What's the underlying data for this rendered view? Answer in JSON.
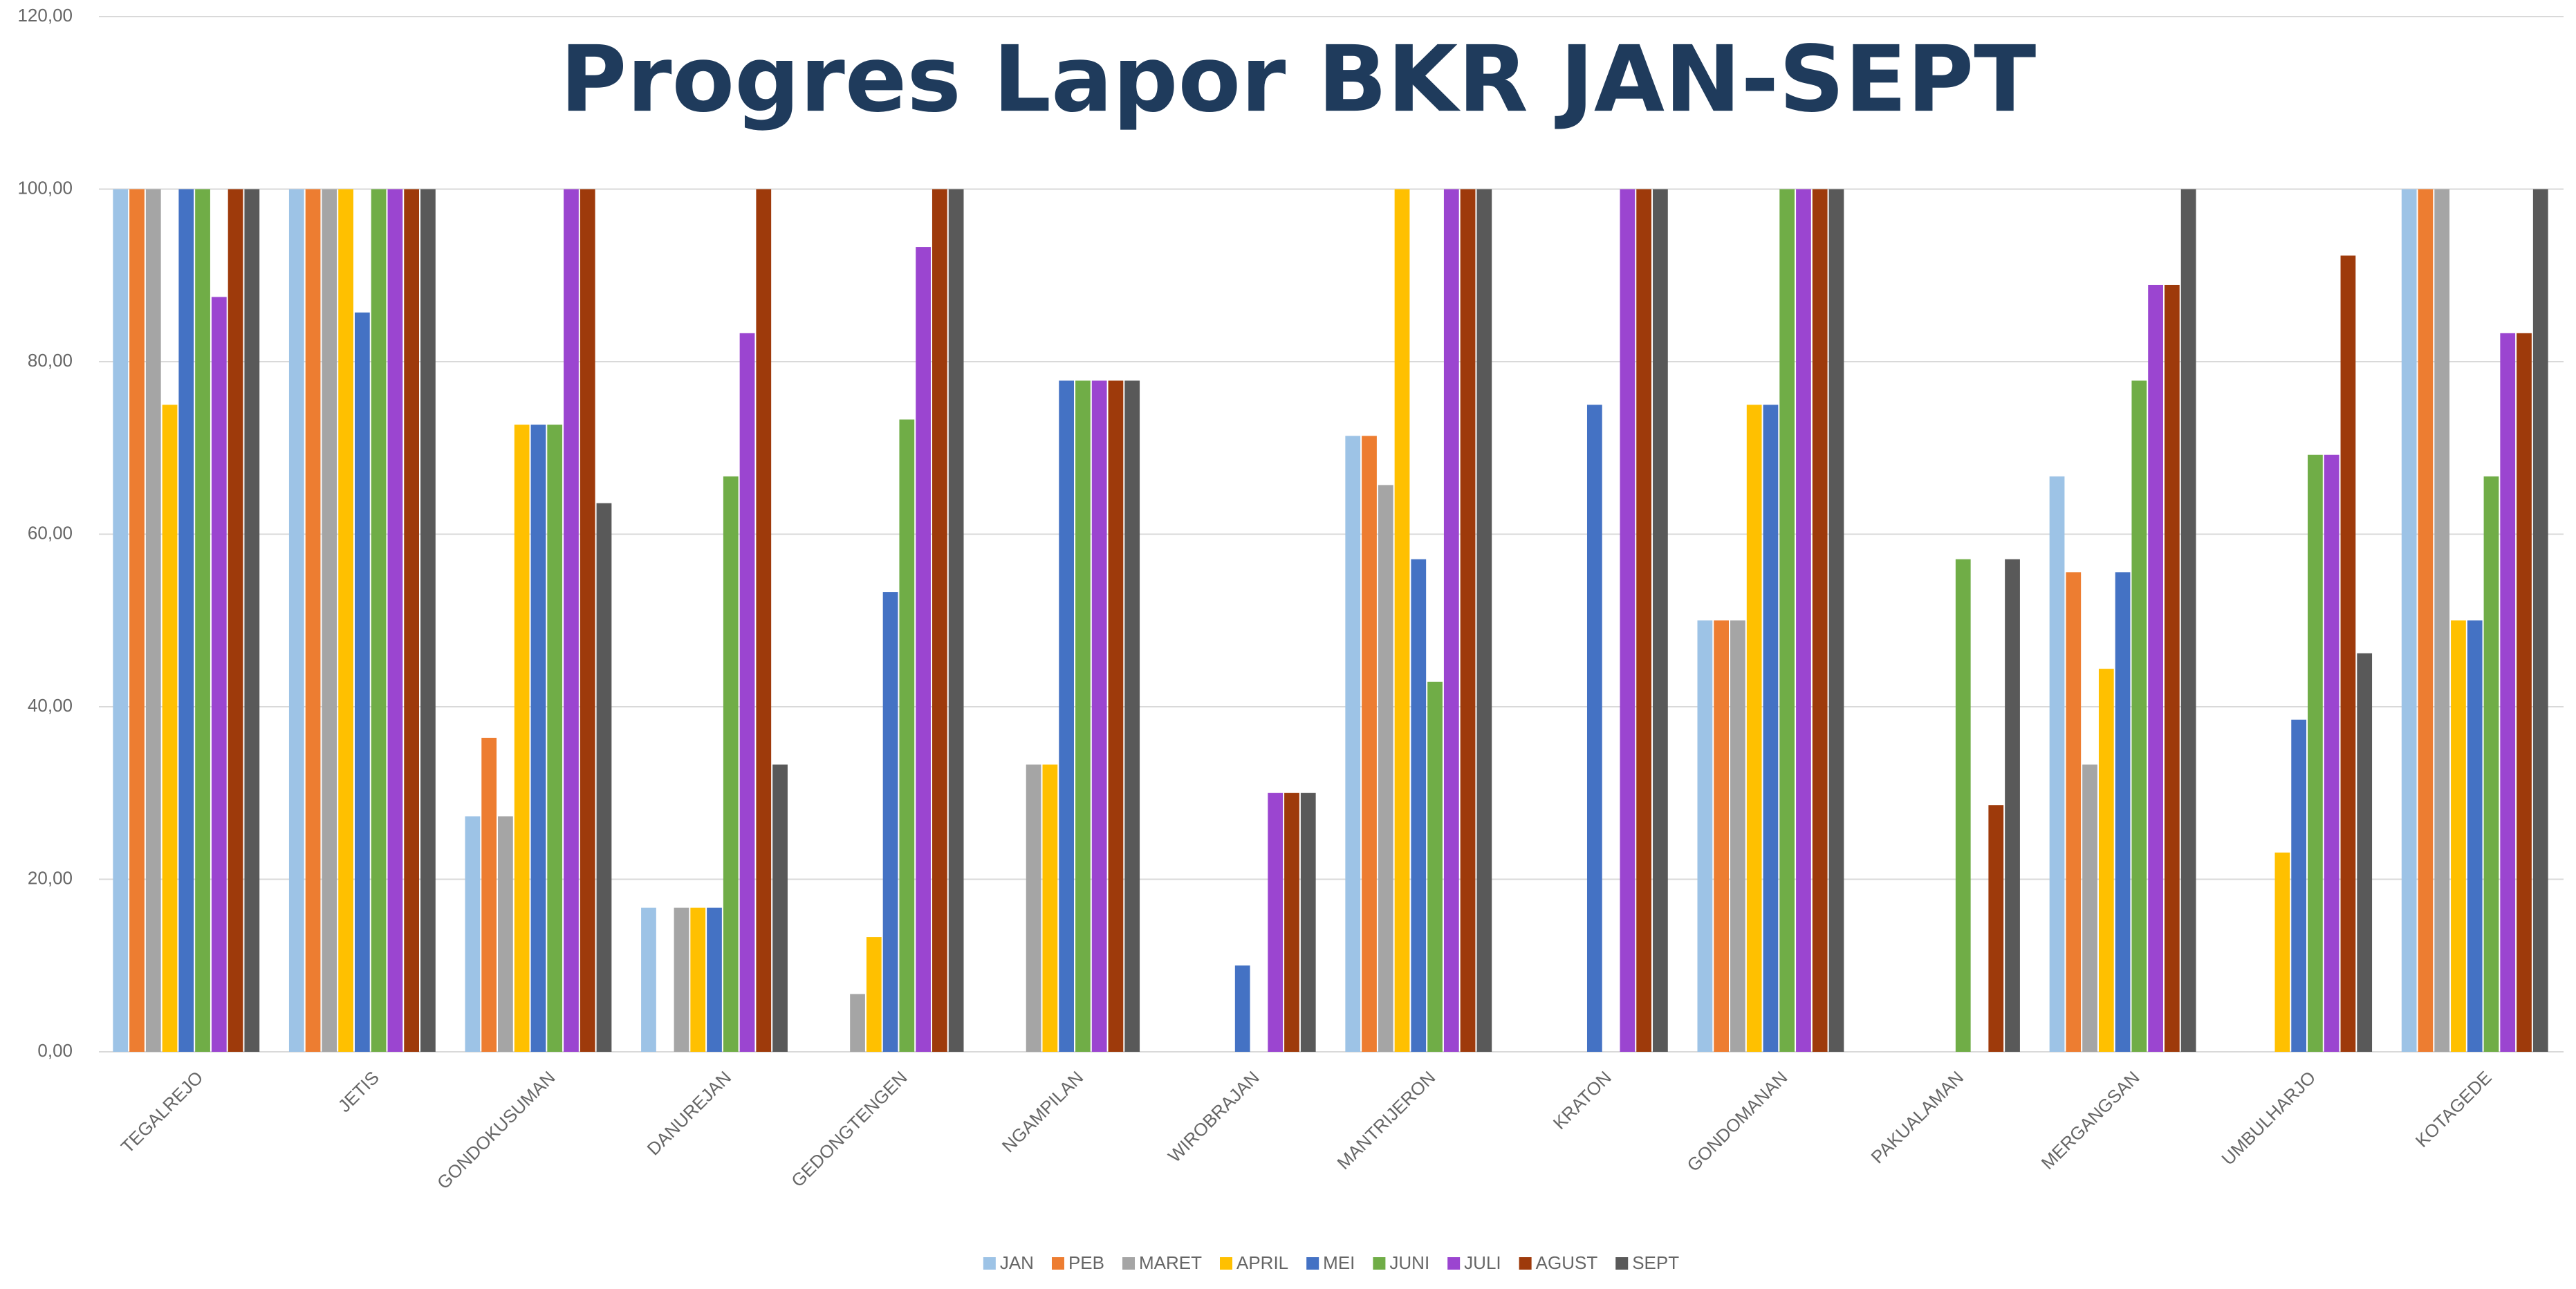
{
  "chart_data": {
    "type": "bar",
    "title": "Progres Lapor BKR JAN-SEPT",
    "categories": [
      "TEGALREJO",
      "JETIS",
      "GONDOKUSUMAN",
      "DANUREJAN",
      "GEDONGTENGEN",
      "NGAMPILAN",
      "WIROBRAJAN",
      "MANTRIJERON",
      "KRATON",
      "GONDOMANAN",
      "PAKUALAMAN",
      "MERGANGSAN",
      "UMBULHARJO",
      "KOTAGEDE"
    ],
    "series": [
      {
        "name": "JAN",
        "color": "#9dc3e6",
        "values": [
          100,
          100,
          27.3,
          16.7,
          0,
          0,
          0,
          71.4,
          0,
          50,
          0,
          66.7,
          0,
          100
        ]
      },
      {
        "name": "PEB",
        "color": "#ed7d31",
        "values": [
          100,
          100,
          36.4,
          0,
          0,
          0,
          0,
          71.4,
          0,
          50,
          0,
          55.6,
          0,
          100
        ]
      },
      {
        "name": "MARET",
        "color": "#a5a5a5",
        "values": [
          100,
          100,
          27.3,
          16.7,
          6.7,
          33.3,
          0,
          65.7,
          0,
          50,
          0,
          33.3,
          0,
          100
        ]
      },
      {
        "name": "APRIL",
        "color": "#ffc000",
        "values": [
          75,
          100,
          72.7,
          16.7,
          13.3,
          33.3,
          0,
          100,
          0,
          75,
          0,
          44.4,
          23.1,
          50
        ]
      },
      {
        "name": "MEI",
        "color": "#4472c4",
        "values": [
          100,
          85.7,
          72.7,
          16.7,
          53.3,
          77.8,
          10,
          57.1,
          75,
          75,
          0,
          55.6,
          38.5,
          50
        ]
      },
      {
        "name": "JUNI",
        "color": "#70ad47",
        "values": [
          100,
          100,
          72.7,
          66.7,
          73.3,
          77.8,
          0,
          42.9,
          0,
          100,
          57.1,
          77.8,
          69.2,
          66.7
        ]
      },
      {
        "name": "JULI",
        "color": "#9b45d0",
        "values": [
          87.5,
          100,
          100,
          83.3,
          93.3,
          77.8,
          30,
          100,
          100,
          100,
          0,
          88.9,
          69.2,
          83.3
        ]
      },
      {
        "name": "AGUST",
        "color": "#9e3a0b",
        "values": [
          100,
          100,
          100,
          100,
          100,
          77.8,
          30,
          100,
          100,
          100,
          28.6,
          88.9,
          92.3,
          83.3
        ]
      },
      {
        "name": "SEPT",
        "color": "#595959",
        "values": [
          100,
          100,
          63.6,
          33.3,
          100,
          77.8,
          30,
          100,
          100,
          100,
          57.1,
          100,
          46.2,
          100
        ]
      }
    ],
    "ylim": [
      0,
      120
    ],
    "yticks": [
      {
        "value": 0,
        "label": "0,00"
      },
      {
        "value": 20,
        "label": "20,00"
      },
      {
        "value": 40,
        "label": "40,00"
      },
      {
        "value": 60,
        "label": "60,00"
      },
      {
        "value": 80,
        "label": "80,00"
      },
      {
        "value": 100,
        "label": "100,00"
      },
      {
        "value": 120,
        "label": "120,00"
      }
    ],
    "grid": true,
    "legend": "bottom"
  }
}
